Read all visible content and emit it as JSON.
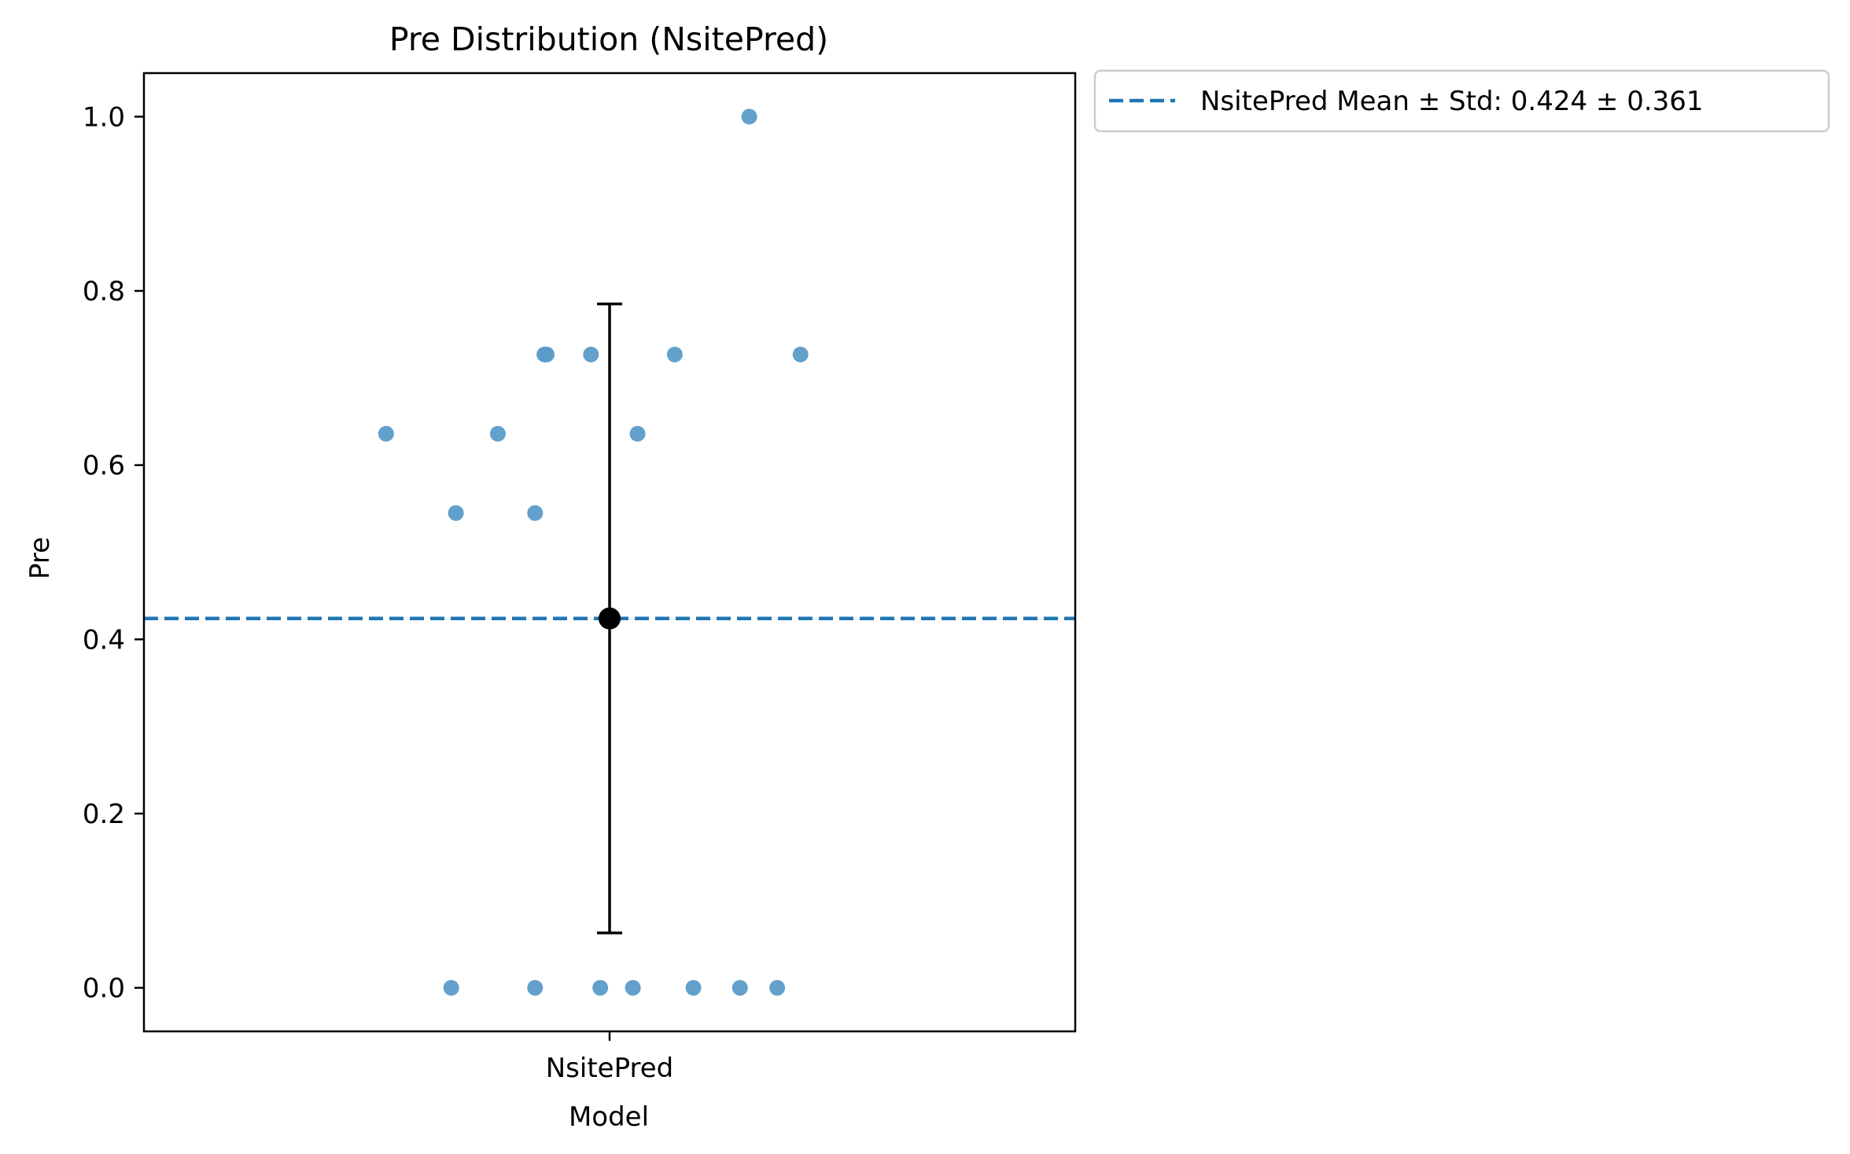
{
  "chart_data": {
    "type": "scatter",
    "title": "Pre Distribution (NsitePred)",
    "xlabel": "Model",
    "ylabel": "Pre",
    "categories": [
      "NsitePred"
    ],
    "ylim": [
      -0.05,
      1.05
    ],
    "yticks": [
      "0.0",
      "0.2",
      "0.4",
      "0.6",
      "0.8",
      "1.0"
    ],
    "grid": false,
    "legend_position": "outside-top-right",
    "series": [
      {
        "name": "NsitePred",
        "color": "#5b9bc9",
        "points": [
          {
            "jitter": -0.48,
            "y": 0.636
          },
          {
            "jitter": -0.33,
            "y": 0.545
          },
          {
            "jitter": -0.34,
            "y": 0.0
          },
          {
            "jitter": -0.24,
            "y": 0.636
          },
          {
            "jitter": -0.16,
            "y": 0.0
          },
          {
            "jitter": -0.16,
            "y": 0.545
          },
          {
            "jitter": -0.14,
            "y": 0.727
          },
          {
            "jitter": -0.135,
            "y": 0.727
          },
          {
            "jitter": -0.04,
            "y": 0.727
          },
          {
            "jitter": -0.02,
            "y": 0.0
          },
          {
            "jitter": 0.05,
            "y": 0.0
          },
          {
            "jitter": 0.06,
            "y": 0.636
          },
          {
            "jitter": 0.14,
            "y": 0.727
          },
          {
            "jitter": 0.18,
            "y": 0.0
          },
          {
            "jitter": 0.28,
            "y": 0.0
          },
          {
            "jitter": 0.3,
            "y": 1.0
          },
          {
            "jitter": 0.36,
            "y": 0.0
          },
          {
            "jitter": 0.41,
            "y": 0.727
          }
        ]
      }
    ],
    "mean": 0.424,
    "std": 0.361,
    "mean_line_color": "#1f77b4",
    "errorbar_color": "#000000",
    "legend_label": "NsitePred Mean ± Std: 0.424 ± 0.361"
  }
}
